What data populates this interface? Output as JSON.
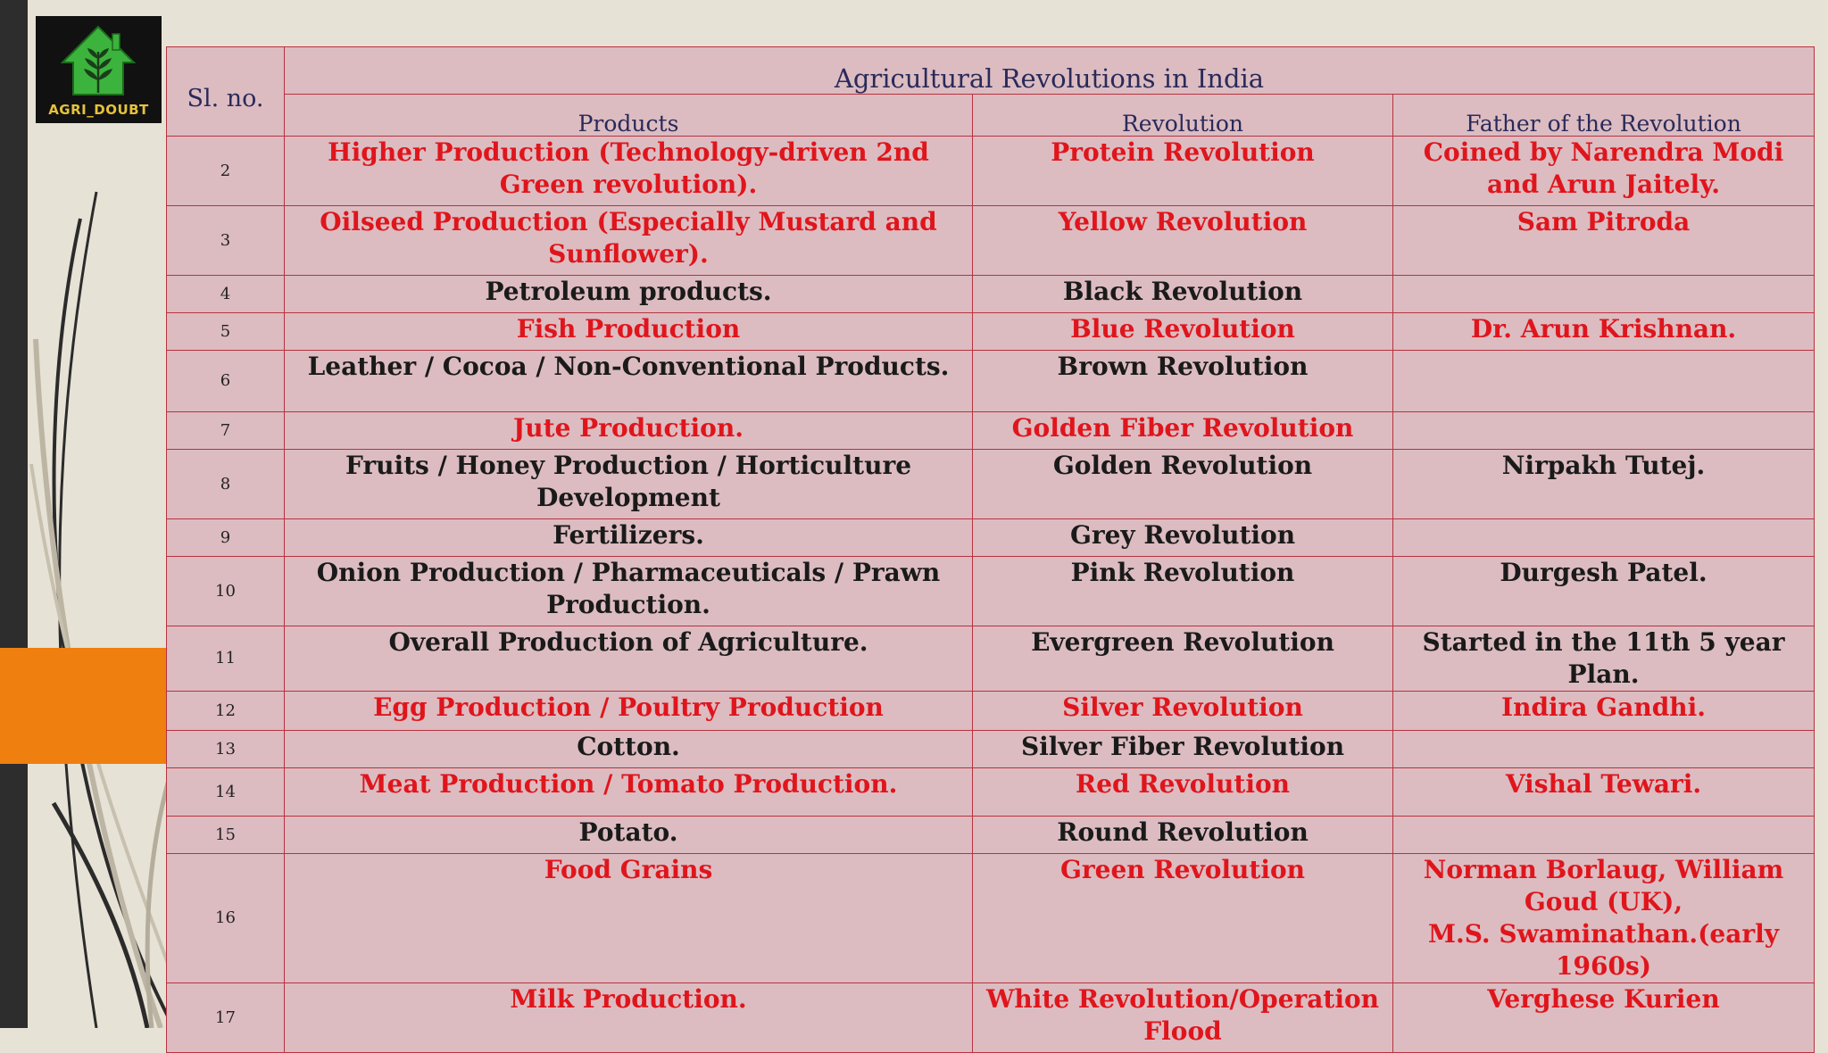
{
  "logo": {
    "text": "AGRI_DOUBT"
  },
  "table": {
    "sl_header": "Sl. no.",
    "title": "Agricultural Revolutions in India",
    "header_row_number": "1",
    "columns": [
      "Products",
      "Revolution",
      "Father of the Revolution"
    ],
    "rows": [
      {
        "no": "2",
        "product": "Higher Production (Technology-driven 2nd Green revolution).",
        "revolution": "Protein Revolution",
        "father": "Coined by Narendra Modi and Arun Jaitely.",
        "color": "red"
      },
      {
        "no": "3",
        "product": "Oilseed Production (Especially Mustard and Sunflower).",
        "revolution": "Yellow Revolution",
        "father": "Sam Pitroda",
        "color": "red"
      },
      {
        "no": "4",
        "product": "Petroleum products.",
        "revolution": "Black Revolution",
        "father": "",
        "color": "black"
      },
      {
        "no": "5",
        "product": "Fish Production",
        "revolution": "Blue Revolution",
        "father": "Dr. Arun Krishnan.",
        "color": "red"
      },
      {
        "no": "6",
        "product": "Leather / Cocoa / Non-Conventional Products.",
        "revolution": "Brown Revolution",
        "father": "",
        "color": "black"
      },
      {
        "no": "7",
        "product": "Jute Production.",
        "revolution": "Golden Fiber Revolution",
        "father": "",
        "color": "red"
      },
      {
        "no": "8",
        "product": "Fruits / Honey Production / Horticulture Development",
        "revolution": "Golden Revolution",
        "father": "Nirpakh Tutej.",
        "color": "black"
      },
      {
        "no": "9",
        "product": "Fertilizers.",
        "revolution": "Grey Revolution",
        "father": "",
        "color": "black"
      },
      {
        "no": "10",
        "product": "Onion Production / Pharmaceuticals / Prawn Production.",
        "revolution": "Pink Revolution",
        "father": "Durgesh Patel.",
        "color": "black"
      },
      {
        "no": "11",
        "product": "Overall Production of Agriculture.",
        "revolution": "Evergreen Revolution",
        "father": "Started in the 11th 5 year Plan.",
        "color": "black"
      },
      {
        "no": "12",
        "product": "Egg Production / Poultry Production",
        "revolution": "Silver Revolution",
        "father": "Indira Gandhi.",
        "color": "red"
      },
      {
        "no": "13",
        "product": "Cotton.",
        "revolution": "Silver Fiber Revolution",
        "father": "",
        "color": "black"
      },
      {
        "no": "14",
        "product": "Meat Production / Tomato Production.",
        "revolution": "Red Revolution",
        "father": "Vishal Tewari.",
        "color": "red"
      },
      {
        "no": "15",
        "product": "Potato.",
        "revolution": "Round Revolution",
        "father": "",
        "color": "black"
      },
      {
        "no": "16",
        "product": "Food Grains",
        "revolution": "Green Revolution",
        "father": "Norman Borlaug, William Goud (UK),\nM.S. Swaminathan.(early 1960s)",
        "color": "red"
      },
      {
        "no": "17",
        "product": "Milk Production.",
        "revolution": "White Revolution/Operation Flood",
        "father": "Verghese Kurien",
        "color": "red"
      }
    ]
  },
  "colors": {
    "red_text": "#e0151c",
    "table_background": "#dcbcc1",
    "border": "#b8323f",
    "accent_orange": "#ef7f0f"
  }
}
